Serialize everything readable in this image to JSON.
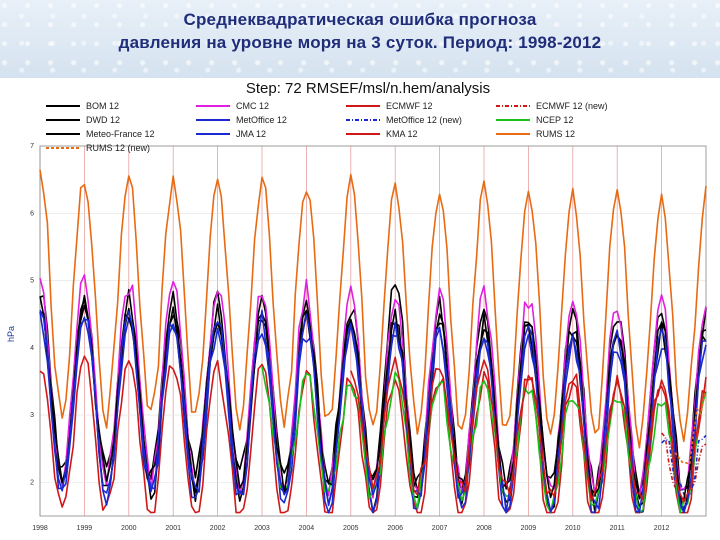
{
  "slide": {
    "title_line1": "Среднеквадратическая ошибка прогноза",
    "title_line2": "давления на уровне моря на 3 суток. Период: 1998-2012"
  },
  "chart_data": {
    "type": "line",
    "title": "Step: 72 RMSEF/msl/n.hem/analysis",
    "xlabel": "",
    "ylabel": "hPa",
    "xlim": [
      1998.0,
      2013.0
    ],
    "ylim": [
      1.5,
      7.0
    ],
    "grid": true,
    "legend_position": "top",
    "x_ticks": [
      "1998",
      "1999",
      "2000",
      "2001",
      "2002",
      "2003",
      "2004",
      "2005",
      "2006",
      "2007",
      "2008",
      "2009",
      "2010",
      "2011",
      "2012"
    ],
    "y_ticks": [
      2,
      3,
      4,
      5,
      6,
      7
    ],
    "series": [
      {
        "name": "BOM 12",
        "color": "#000000",
        "dash": "",
        "start": 1998.0,
        "end": 2013.0,
        "wmin": 3.1,
        "wmax": 4.8,
        "smin": 2.2,
        "smax": 3.8,
        "spike": true
      },
      {
        "name": "CMC 12",
        "color": "#e020e0",
        "dash": "",
        "start": 1998.0,
        "end": 2013.0,
        "wmin": 3.3,
        "wmax": 5.0,
        "smin": 2.1,
        "smax": 3.8,
        "spike": false
      },
      {
        "name": "ECMWF 12",
        "color": "#d01818",
        "dash": "",
        "start": 1998.0,
        "end": 2013.0,
        "wmin": 2.6,
        "wmax": 3.8,
        "smin": 1.6,
        "smax": 2.6,
        "spike": false
      },
      {
        "name": "ECMWF 12 (new)",
        "color": "#d01818",
        "dash": "4,2,1,2",
        "start": 2012.0,
        "end": 2013.0,
        "wmin": 2.2,
        "wmax": 2.7,
        "smin": 1.6,
        "smax": 2.2,
        "spike": false
      },
      {
        "name": "DWD 12",
        "color": "#000000",
        "dash": "",
        "start": 1998.0,
        "end": 2013.0,
        "wmin": 3.0,
        "wmax": 4.6,
        "smin": 1.9,
        "smax": 3.3,
        "spike": false
      },
      {
        "name": "MetOffice 12",
        "color": "#1a2ad0",
        "dash": "",
        "start": 1998.0,
        "end": 2013.0,
        "wmin": 2.8,
        "wmax": 4.4,
        "smin": 1.8,
        "smax": 3.0,
        "spike": false
      },
      {
        "name": "MetOffice 12 (new)",
        "color": "#1a2ad0",
        "dash": "4,2,1,2",
        "start": 2012.0,
        "end": 2013.0,
        "wmin": 2.2,
        "wmax": 2.7,
        "smin": 1.8,
        "smax": 2.3,
        "spike": false
      },
      {
        "name": "NCEP 12",
        "color": "#18c018",
        "dash": "",
        "start": 2003.0,
        "end": 2013.0,
        "wmin": 2.6,
        "wmax": 3.6,
        "smin": 1.9,
        "smax": 2.9,
        "spike": false
      },
      {
        "name": "Meteo-France 12",
        "color": "#000000",
        "dash": "",
        "start": 1998.0,
        "end": 2013.0,
        "wmin": 3.0,
        "wmax": 4.6,
        "smin": 2.1,
        "smax": 3.6,
        "spike": false
      },
      {
        "name": "JMA 12",
        "color": "#1a2ad0",
        "dash": "",
        "start": 1998.0,
        "end": 2013.0,
        "wmin": 2.9,
        "wmax": 4.5,
        "smin": 1.9,
        "smax": 3.3,
        "spike": false
      },
      {
        "name": "KMA 12",
        "color": "#d01818",
        "dash": "",
        "start": 2005.0,
        "end": 2013.0,
        "wmin": 3.0,
        "wmax": 3.8,
        "smin": 2.0,
        "smax": 2.9,
        "spike": false
      },
      {
        "name": "RUMS 12",
        "color": "#e86a12",
        "dash": "",
        "start": 1998.0,
        "end": 2013.0,
        "wmin": 4.2,
        "wmax": 6.6,
        "smin": 3.0,
        "smax": 4.3,
        "spike": false
      },
      {
        "name": "RUMS 12 (new)",
        "color": "#e86a12",
        "dash": "3,2",
        "start": 2012.3,
        "end": 2013.0,
        "wmin": 2.8,
        "wmax": 3.3,
        "smin": 2.2,
        "smax": 2.8,
        "spike": false
      }
    ]
  }
}
